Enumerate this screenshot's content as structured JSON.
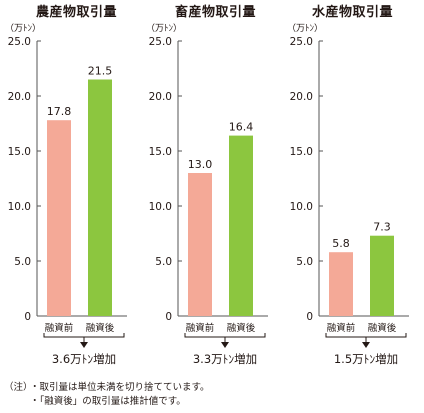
{
  "chart_data": [
    {
      "type": "bar",
      "title": "農産物取引量",
      "ylabel": "（万ﾄﾝ）",
      "categories": [
        "融資前",
        "融資後"
      ],
      "values": [
        17.8,
        21.5
      ],
      "data_labels": [
        "17.8",
        "21.5"
      ],
      "colors": [
        "#f4a997",
        "#8cc63f"
      ],
      "ylim": [
        0,
        25
      ],
      "yticks": [
        "0",
        "5.0",
        "10.0",
        "15.0",
        "20.0",
        "25.0"
      ],
      "grid": false,
      "annotation": "3.6万ﾄﾝ増加"
    },
    {
      "type": "bar",
      "title": "畜産物取引量",
      "ylabel": "（万ﾄﾝ）",
      "categories": [
        "融資前",
        "融資後"
      ],
      "values": [
        13.0,
        16.4
      ],
      "data_labels": [
        "13.0",
        "16.4"
      ],
      "colors": [
        "#f4a997",
        "#8cc63f"
      ],
      "ylim": [
        0,
        25
      ],
      "yticks": [
        "0",
        "5.0",
        "10.0",
        "15.0",
        "20.0",
        "25.0"
      ],
      "grid": false,
      "annotation": "3.3万ﾄﾝ増加"
    },
    {
      "type": "bar",
      "title": "水産物取引量",
      "ylabel": "（万ﾄﾝ）",
      "categories": [
        "融資前",
        "融資後"
      ],
      "values": [
        5.8,
        7.3
      ],
      "data_labels": [
        "5.8",
        "7.3"
      ],
      "colors": [
        "#f4a997",
        "#8cc63f"
      ],
      "ylim": [
        0,
        25
      ],
      "yticks": [
        "0",
        "5.0",
        "10.0",
        "15.0",
        "20.0",
        "25.0"
      ],
      "grid": false,
      "annotation": "1.5万ﾄﾝ増加"
    }
  ],
  "notes": {
    "prefix": "（注）",
    "lines": [
      "・取引量は単位未満を切り捨てています。",
      "・「融資後」の取引量は推計値です。"
    ]
  }
}
